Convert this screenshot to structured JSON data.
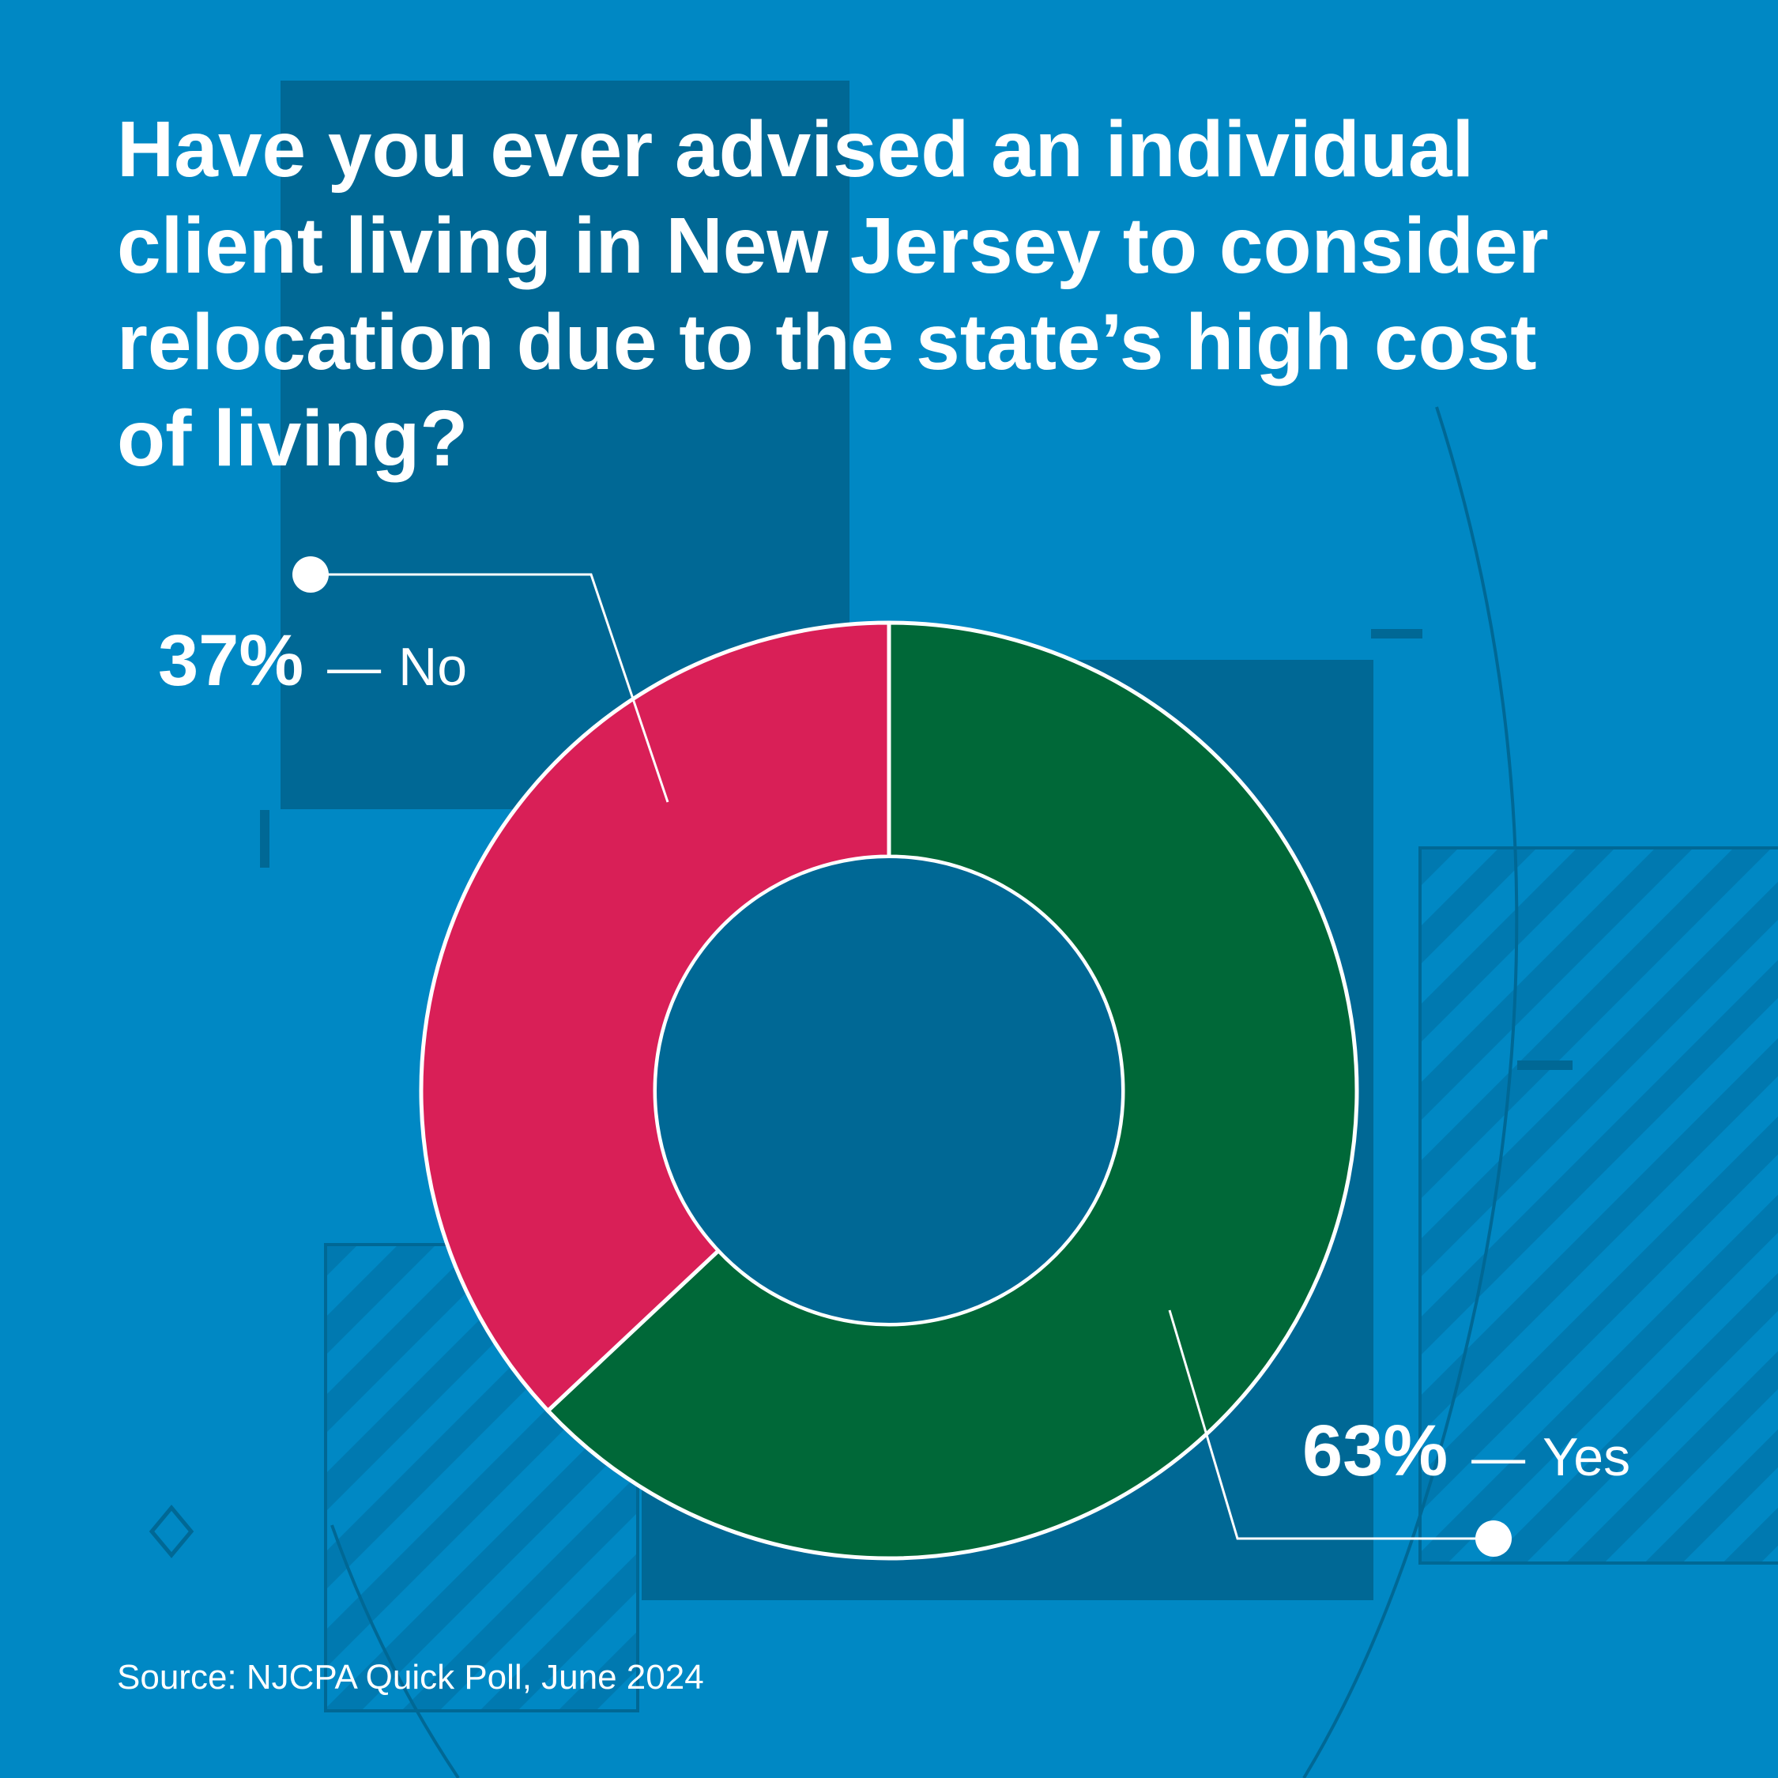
{
  "chart_data": {
    "type": "pie",
    "variant": "donut",
    "title_lines": [
      "Have you ever advised an individual",
      "client living in New Jersey to consider",
      "relocation due to the state’s high cost",
      "of living?"
    ],
    "slices": [
      {
        "label": "No",
        "value": 37,
        "value_text": "37%",
        "color": "#d91f57"
      },
      {
        "label": "Yes",
        "value": 63,
        "value_text": "63%",
        "color": "#006838"
      }
    ],
    "dash": "—",
    "source": "Source: NJCPA Quick Poll, June 2024"
  },
  "colors": {
    "background": "#0088c4",
    "dark_panel": "#006895",
    "hatch_stripe": "#0079b0",
    "outline": "#ffffff"
  }
}
